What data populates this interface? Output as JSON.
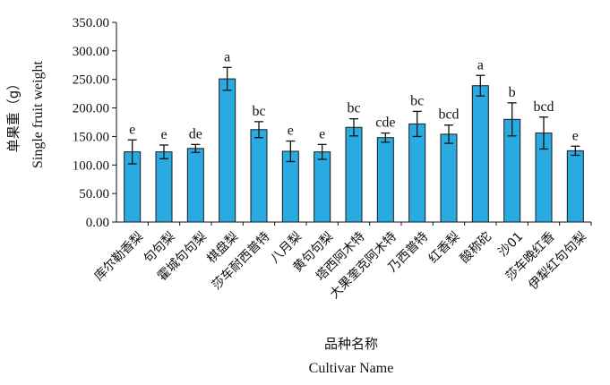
{
  "chart_data": {
    "type": "bar",
    "title": "",
    "ylabel_cn": "单果重（g）",
    "ylabel_en": "Single fruit weight",
    "xlabel_cn": "品种名称",
    "xlabel_en": "Cultivar Name",
    "ylim": [
      0,
      350
    ],
    "yticks": [
      "0.00",
      "50.00",
      "100.00",
      "150.00",
      "200.00",
      "250.00",
      "300.00",
      "350.00"
    ],
    "grid": false,
    "bar_color": "#29abe2",
    "categories": [
      "库尔勒香梨",
      "句句梨",
      "霍城句句梨",
      "棋盘梨",
      "莎车耐西普特",
      "八月梨",
      "黄句句梨",
      "塔西阿木特",
      "大果奎克阿木特",
      "乃西普特",
      "红香梨",
      "酸称砣",
      "沙01",
      "莎车晚红香",
      "伊犁红句句梨"
    ],
    "values": [
      123,
      123,
      129,
      251,
      162,
      124,
      123,
      166,
      148,
      172,
      154,
      239,
      180,
      156,
      125
    ],
    "errors": [
      21,
      12,
      7,
      20,
      14,
      18,
      13,
      15,
      8,
      22,
      16,
      18,
      29,
      28,
      8
    ],
    "significance": [
      "e",
      "e",
      "de",
      "a",
      "bc",
      "e",
      "e",
      "bc",
      "cde",
      "bc",
      "bcd",
      "a",
      "b",
      "bcd",
      "e"
    ]
  }
}
